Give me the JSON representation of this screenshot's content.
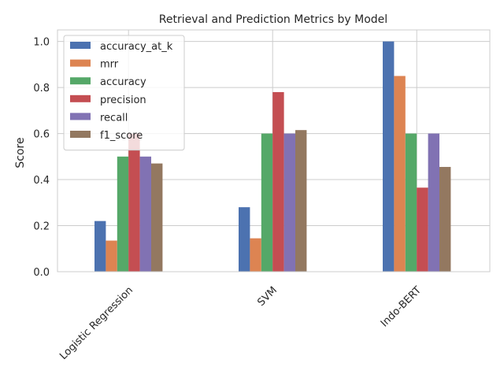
{
  "chart_data": {
    "type": "bar",
    "title": "Retrieval and Prediction Metrics by Model",
    "xlabel": "",
    "ylabel": "Score",
    "ylim": [
      0,
      1.05
    ],
    "yticks": [
      0.0,
      0.2,
      0.4,
      0.6,
      0.8,
      1.0
    ],
    "ytick_labels": [
      "0.0",
      "0.2",
      "0.4",
      "0.6",
      "0.8",
      "1.0"
    ],
    "grid": true,
    "legend_position": "top-left",
    "categories": [
      "Logistic Regression",
      "SVM",
      "Indo-BERT"
    ],
    "series": [
      {
        "name": "accuracy_at_k",
        "color": "#4c72b0",
        "values": [
          0.22,
          0.28,
          1.0
        ]
      },
      {
        "name": "mrr",
        "color": "#dd8452",
        "values": [
          0.135,
          0.145,
          0.85
        ]
      },
      {
        "name": "accuracy",
        "color": "#55a868",
        "values": [
          0.5,
          0.6,
          0.6
        ]
      },
      {
        "name": "precision",
        "color": "#c44e52",
        "values": [
          0.6,
          0.78,
          0.365
        ]
      },
      {
        "name": "recall",
        "color": "#8172b3",
        "values": [
          0.5,
          0.6,
          0.6
        ]
      },
      {
        "name": "f1_score",
        "color": "#937860",
        "values": [
          0.47,
          0.615,
          0.455
        ]
      }
    ]
  }
}
